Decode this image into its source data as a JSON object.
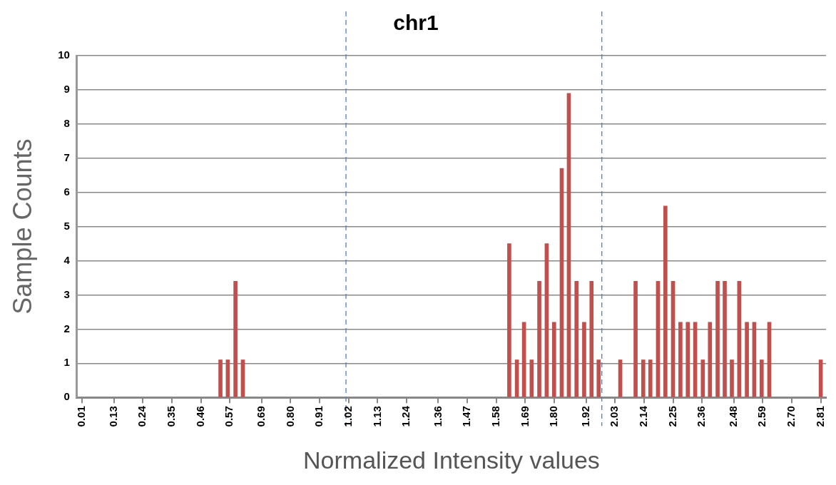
{
  "chart_data": {
    "type": "bar",
    "title": "chr1",
    "xlabel": "Normalized Intensity values",
    "ylabel": "Sample Counts",
    "x": [
      0.534,
      0.562,
      0.591,
      0.619,
      1.629,
      1.658,
      1.685,
      1.714,
      1.743,
      1.771,
      1.799,
      1.828,
      1.855,
      1.884,
      1.913,
      1.941,
      1.968,
      2.05,
      2.108,
      2.137,
      2.164,
      2.193,
      2.221,
      2.25,
      2.278,
      2.306,
      2.334,
      2.363,
      2.39,
      2.419,
      2.446,
      2.473,
      2.501,
      2.53,
      2.558,
      2.586,
      2.615,
      2.81
    ],
    "values": [
      1.1,
      1.1,
      3.4,
      1.1,
      4.5,
      1.1,
      2.2,
      1.1,
      3.4,
      4.5,
      2.2,
      6.7,
      8.9,
      3.4,
      2.2,
      3.4,
      1.1,
      1.1,
      3.4,
      1.1,
      1.1,
      3.4,
      5.6,
      3.4,
      2.2,
      2.2,
      2.2,
      1.1,
      2.2,
      3.4,
      3.4,
      1.1,
      3.4,
      2.2,
      2.2,
      1.1,
      2.2,
      1.1
    ],
    "color": "#c0504d",
    "xlim": [
      -0.01,
      2.83
    ],
    "xticks": [
      0.01,
      0.13,
      0.24,
      0.35,
      0.46,
      0.57,
      0.69,
      {
        "value": 0.8,
        "label": "0.80"
      },
      0.91,
      1.02,
      1.13,
      1.24,
      1.36,
      1.47,
      1.58,
      1.69,
      {
        "value": 1.8,
        "label": "1.80"
      },
      1.92,
      2.03,
      2.14,
      2.25,
      2.36,
      2.48,
      2.59,
      {
        "value": 2.7,
        "label": "2.70"
      },
      2.81
    ],
    "ylim": [
      0,
      10
    ],
    "yticks": [
      0,
      1,
      2,
      3,
      4,
      5,
      6,
      7,
      8,
      9,
      10
    ],
    "ref_lines": [
      {
        "axis": "x",
        "value": 1.01,
        "color": "#4f81bd",
        "line_style": "dashed"
      },
      {
        "axis": "x",
        "value": 1.98,
        "color": "#4f81bd",
        "line_style": "dashed"
      }
    ],
    "grid": "y",
    "legend": false
  }
}
